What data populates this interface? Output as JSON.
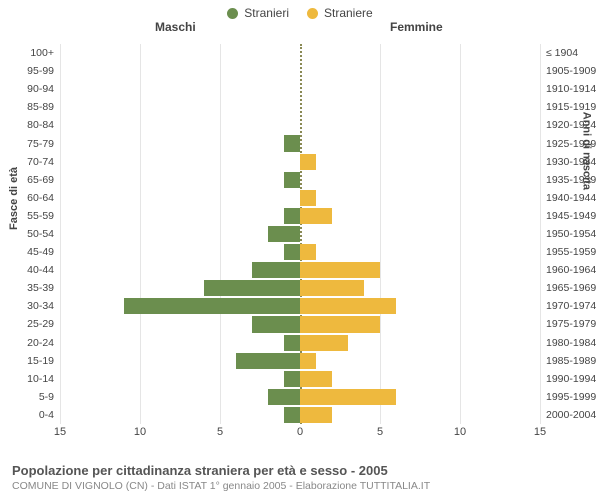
{
  "chart": {
    "type": "population-pyramid",
    "legend": {
      "male": {
        "label": "Stranieri",
        "color": "#6b8e4e"
      },
      "female": {
        "label": "Straniere",
        "color": "#eeb93e"
      }
    },
    "panel_titles": {
      "left": "Maschi",
      "right": "Femmine"
    },
    "left_axis_label": "Fasce di età",
    "right_axis_label": "Anni di nascita",
    "xlim": [
      0,
      15
    ],
    "xtick_step": 5,
    "xticks_left": [
      "15",
      "10",
      "5",
      "0"
    ],
    "xticks_right": [
      "0",
      "5",
      "10",
      "15"
    ],
    "grid_color": "#e5e5e5",
    "center_line_color": "#8a8a55",
    "background_color": "#ffffff",
    "label_fontsize": 10.5,
    "tick_fontsize": 11,
    "title_fontsize": 13,
    "rows": [
      {
        "age": "100+",
        "birth": "≤ 1904",
        "m": 0,
        "f": 0
      },
      {
        "age": "95-99",
        "birth": "1905-1909",
        "m": 0,
        "f": 0
      },
      {
        "age": "90-94",
        "birth": "1910-1914",
        "m": 0,
        "f": 0
      },
      {
        "age": "85-89",
        "birth": "1915-1919",
        "m": 0,
        "f": 0
      },
      {
        "age": "80-84",
        "birth": "1920-1924",
        "m": 0,
        "f": 0
      },
      {
        "age": "75-79",
        "birth": "1925-1929",
        "m": 1,
        "f": 0
      },
      {
        "age": "70-74",
        "birth": "1930-1934",
        "m": 0,
        "f": 1
      },
      {
        "age": "65-69",
        "birth": "1935-1939",
        "m": 1,
        "f": 0
      },
      {
        "age": "60-64",
        "birth": "1940-1944",
        "m": 0,
        "f": 1
      },
      {
        "age": "55-59",
        "birth": "1945-1949",
        "m": 1,
        "f": 2
      },
      {
        "age": "50-54",
        "birth": "1950-1954",
        "m": 2,
        "f": 0
      },
      {
        "age": "45-49",
        "birth": "1955-1959",
        "m": 1,
        "f": 1
      },
      {
        "age": "40-44",
        "birth": "1960-1964",
        "m": 3,
        "f": 5
      },
      {
        "age": "35-39",
        "birth": "1965-1969",
        "m": 6,
        "f": 4
      },
      {
        "age": "30-34",
        "birth": "1970-1974",
        "m": 11,
        "f": 6
      },
      {
        "age": "25-29",
        "birth": "1975-1979",
        "m": 3,
        "f": 5
      },
      {
        "age": "20-24",
        "birth": "1980-1984",
        "m": 1,
        "f": 3
      },
      {
        "age": "15-19",
        "birth": "1985-1989",
        "m": 4,
        "f": 1
      },
      {
        "age": "10-14",
        "birth": "1990-1994",
        "m": 1,
        "f": 2
      },
      {
        "age": "5-9",
        "birth": "1995-1999",
        "m": 2,
        "f": 6
      },
      {
        "age": "0-4",
        "birth": "2000-2004",
        "m": 1,
        "f": 2
      }
    ]
  },
  "footer": {
    "title": "Popolazione per cittadinanza straniera per età e sesso - 2005",
    "subtitle": "COMUNE DI VIGNOLO (CN) - Dati ISTAT 1° gennaio 2005 - Elaborazione TUTTITALIA.IT"
  }
}
